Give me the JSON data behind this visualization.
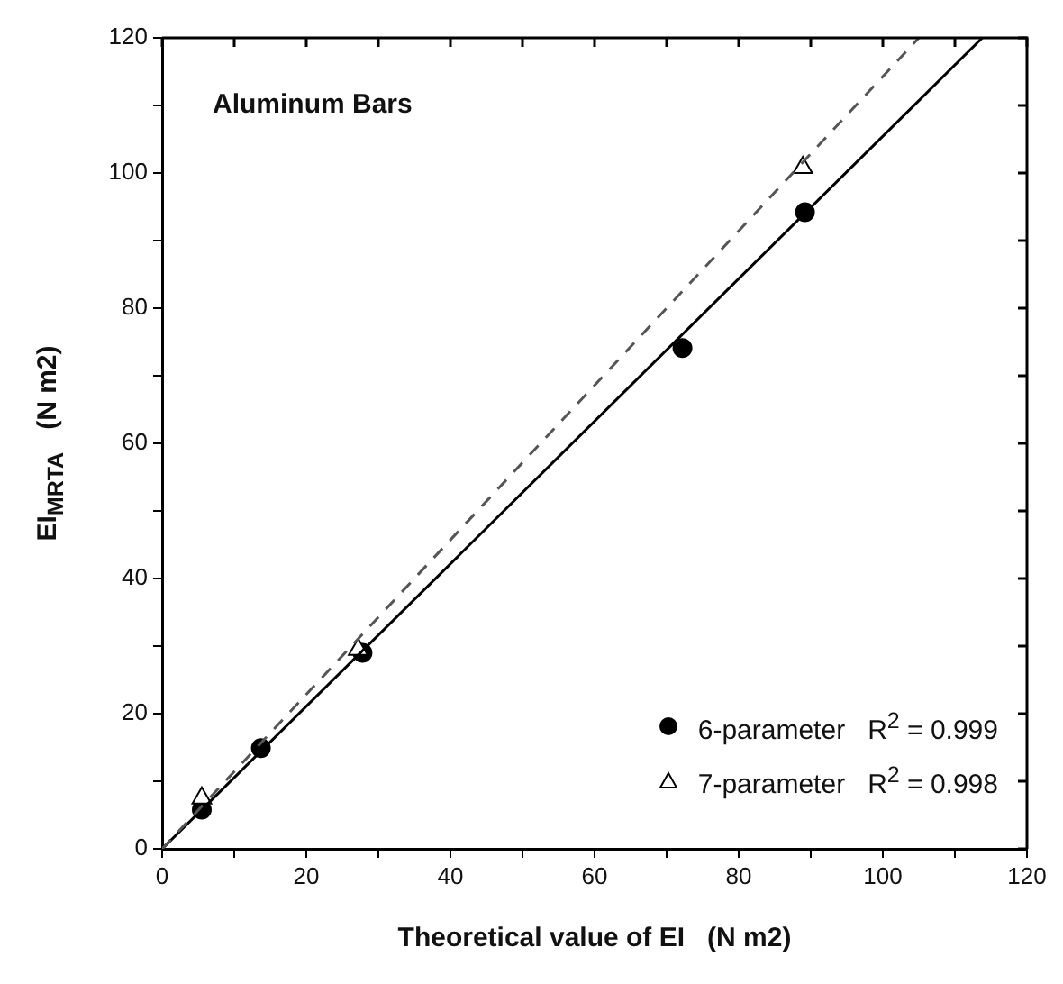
{
  "chart_data": {
    "type": "scatter",
    "xlabel": "Theoretical value of EI   (N m2)",
    "ylabel": "EI$_{MRTA}$   (N m2)",
    "annotations": [
      "Aluminum Bars"
    ],
    "xlim": [
      0,
      120
    ],
    "ylim": [
      0,
      120
    ],
    "xticks": [
      0,
      {
        "value": 10,
        "label": null
      },
      20,
      {
        "value": 30,
        "label": null
      },
      40,
      {
        "value": 50,
        "label": null
      },
      60,
      {
        "value": 70,
        "label": null
      },
      80,
      {
        "value": 90,
        "label": null
      },
      100,
      {
        "value": 110,
        "label": null
      },
      120
    ],
    "yticks": [
      0,
      {
        "value": 10,
        "label": null
      },
      20,
      {
        "value": 30,
        "label": null
      },
      40,
      {
        "value": 50,
        "label": null
      },
      60,
      {
        "value": 70,
        "label": null
      },
      80,
      {
        "value": 90,
        "label": null
      },
      100,
      {
        "value": 110,
        "label": null
      },
      120
    ],
    "grid": false,
    "legend": "bottom right",
    "series": [
      {
        "name": "6-parameter   R$^{2}$ = 0.999",
        "marker": "circle",
        "color": "#000000",
        "x": [
          5.5,
          13.7,
          27.8,
          72.2,
          89.2
        ],
        "values": [
          5.8,
          14.9,
          29,
          74.1,
          94.2
        ]
      },
      {
        "name": "7-parameter   R$^{2}$ = 0.998",
        "marker": "triangle",
        "color": "#000000",
        "x": [
          5.5,
          27.2,
          88.9
        ],
        "values": [
          7.5,
          29.5,
          100.8
        ]
      },
      {
        "type": "line",
        "marker": "none",
        "line_style": "solid",
        "color": "#000000",
        "x": [
          0,
          113.8
        ],
        "values": [
          0,
          120
        ]
      },
      {
        "type": "line",
        "marker": "none",
        "line_style": "dashed",
        "color": "#555555",
        "x": [
          0,
          105
        ],
        "values": [
          0,
          120
        ]
      }
    ]
  }
}
